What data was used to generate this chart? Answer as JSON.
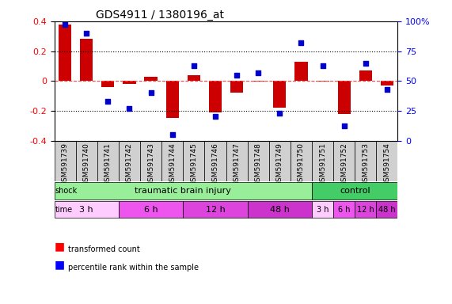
{
  "title": "GDS4911 / 1380196_at",
  "samples": [
    "GSM591739",
    "GSM591740",
    "GSM591741",
    "GSM591742",
    "GSM591743",
    "GSM591744",
    "GSM591745",
    "GSM591746",
    "GSM591747",
    "GSM591748",
    "GSM591749",
    "GSM591750",
    "GSM591751",
    "GSM591752",
    "GSM591753",
    "GSM591754"
  ],
  "bar_values": [
    0.38,
    0.28,
    -0.04,
    -0.02,
    0.03,
    -0.25,
    0.04,
    -0.21,
    -0.08,
    -0.005,
    -0.18,
    0.13,
    -0.005,
    -0.22,
    0.07,
    -0.03
  ],
  "dot_values": [
    97,
    90,
    33,
    27,
    40,
    5,
    63,
    20,
    55,
    57,
    23,
    82,
    63,
    12,
    65,
    43
  ],
  "bar_color": "#cc0000",
  "dot_color": "#0000cc",
  "ylim": [
    -0.4,
    0.4
  ],
  "yticks_left": [
    -0.4,
    -0.2,
    0.0,
    0.2,
    0.4
  ],
  "yticks_right": [
    0,
    25,
    50,
    75,
    100
  ],
  "ytick_labels_right": [
    "0",
    "25",
    "50",
    "75",
    "100%"
  ],
  "shock_groups": [
    {
      "label": "traumatic brain injury",
      "start": 0,
      "end": 11,
      "color": "#99ff99"
    },
    {
      "label": "control",
      "start": 12,
      "end": 15,
      "color": "#33cc66"
    }
  ],
  "time_groups": [
    {
      "label": "3 h",
      "start": 0,
      "end": 3,
      "color": "#ffccff"
    },
    {
      "label": "6 h",
      "start": 4,
      "end": 7,
      "color": "#ff66ff"
    },
    {
      "label": "12 h",
      "start": 8,
      "end": 11,
      "color": "#ff66ff"
    },
    {
      "label": "48 h",
      "start": 12,
      "end": 15,
      "color": "#ff66ff"
    }
  ],
  "time_groups_detail": [
    {
      "label": "3 h",
      "start": 0,
      "end": 3,
      "color": "#ffccff"
    },
    {
      "label": "6 h",
      "start": 4,
      "end": 7,
      "color": "#dd55dd"
    },
    {
      "label": "12 h",
      "start": 8,
      "end": 11,
      "color": "#cc44cc"
    },
    {
      "label": "48 h",
      "start": 12,
      "end": 15,
      "color": "#ee55ee"
    },
    {
      "label": "3 h",
      "start": 12,
      "end": 12,
      "color": "#ffccff"
    },
    {
      "label": "6 h",
      "start": 13,
      "end": 13,
      "color": "#dd55dd"
    },
    {
      "label": "12 h",
      "start": 14,
      "end": 14,
      "color": "#cc44cc"
    },
    {
      "label": "48 h",
      "start": 15,
      "end": 15,
      "color": "#ee55ee"
    }
  ],
  "background_color": "#f0f0f0",
  "grid_color": "#000000",
  "zero_line_color": "#ff4444"
}
